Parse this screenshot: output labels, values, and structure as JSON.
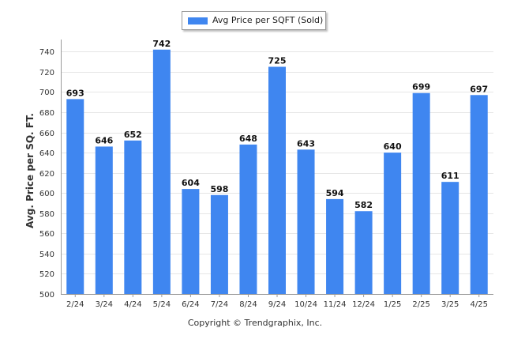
{
  "chart_data": {
    "type": "bar",
    "categories": [
      "2/24",
      "3/24",
      "4/24",
      "5/24",
      "6/24",
      "7/24",
      "8/24",
      "9/24",
      "10/24",
      "11/24",
      "12/24",
      "1/25",
      "2/25",
      "3/25",
      "4/25"
    ],
    "series": [
      {
        "name": "Avg Price per SQFT (Sold)",
        "values": [
          693,
          646,
          652,
          742,
          604,
          598,
          648,
          725,
          643,
          594,
          582,
          640,
          699,
          611,
          697
        ]
      }
    ],
    "ylabel": "Avg. Price per SQ. FT.",
    "xlabel": "",
    "ylim": [
      500,
      750
    ],
    "yticks": [
      500,
      520,
      540,
      560,
      580,
      600,
      620,
      640,
      660,
      680,
      700,
      720,
      740
    ],
    "grid": true,
    "legend": "top-center",
    "data_labels": true
  },
  "colors": {
    "bar": "#3f86f0",
    "grid": "#e6e6e6",
    "axis": "#9a9a9a",
    "text": "#333333"
  },
  "footer": {
    "copyright": "Copyright © Trendgraphix, Inc."
  }
}
